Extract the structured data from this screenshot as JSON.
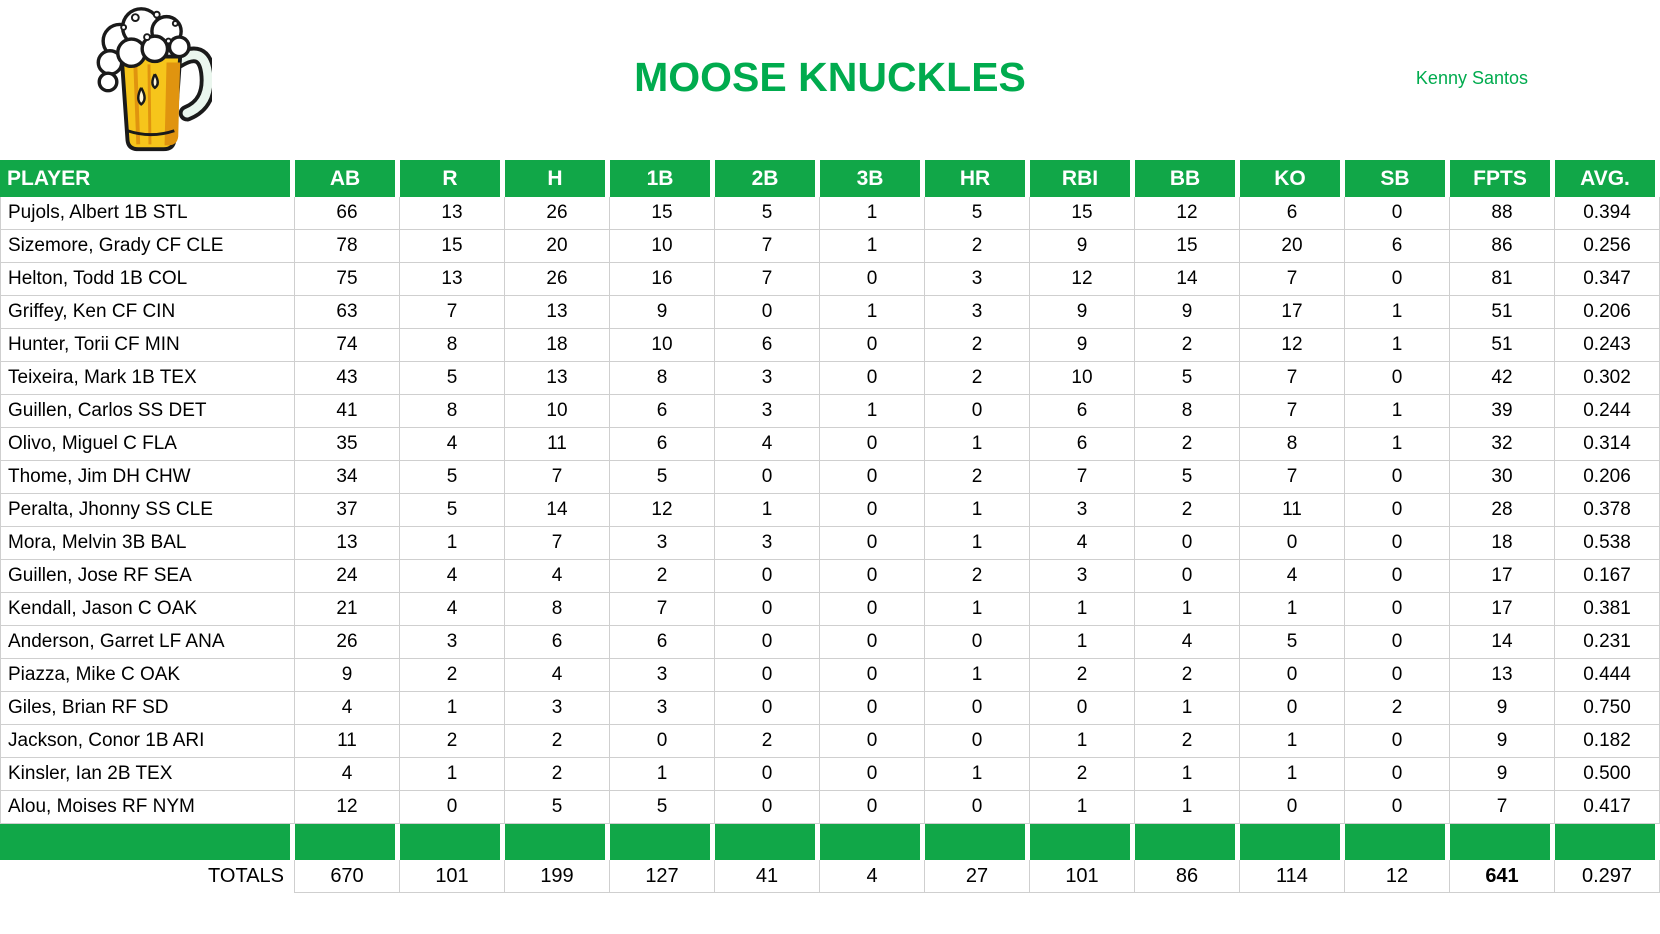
{
  "header": {
    "title": "MOOSE KNUCKLES",
    "owner": "Kenny Santos",
    "logo": "beer-mug"
  },
  "colors": {
    "green": "#11A748",
    "titlegreen": "#00AB4E",
    "grid": "#CFCFCF",
    "text": "#000000"
  },
  "table": {
    "columns": [
      "PLAYER",
      "AB",
      "R",
      "H",
      "1B",
      "2B",
      "3B",
      "HR",
      "RBI",
      "BB",
      "KO",
      "SB",
      "FPTS",
      "AVG."
    ],
    "rows": [
      {
        "player": "Pujols, Albert 1B STL",
        "stats": [
          66,
          13,
          26,
          15,
          5,
          1,
          5,
          15,
          12,
          6,
          0,
          88,
          "0.394"
        ]
      },
      {
        "player": "Sizemore, Grady CF CLE",
        "stats": [
          78,
          15,
          20,
          10,
          7,
          1,
          2,
          9,
          15,
          20,
          6,
          86,
          "0.256"
        ]
      },
      {
        "player": "Helton, Todd 1B COL",
        "stats": [
          75,
          13,
          26,
          16,
          7,
          0,
          3,
          12,
          14,
          7,
          0,
          81,
          "0.347"
        ]
      },
      {
        "player": "Griffey, Ken CF CIN",
        "stats": [
          63,
          7,
          13,
          9,
          0,
          1,
          3,
          9,
          9,
          17,
          1,
          51,
          "0.206"
        ]
      },
      {
        "player": "Hunter, Torii CF MIN",
        "stats": [
          74,
          8,
          18,
          10,
          6,
          0,
          2,
          9,
          2,
          12,
          1,
          51,
          "0.243"
        ]
      },
      {
        "player": "Teixeira, Mark 1B TEX",
        "stats": [
          43,
          5,
          13,
          8,
          3,
          0,
          2,
          10,
          5,
          7,
          0,
          42,
          "0.302"
        ]
      },
      {
        "player": "Guillen, Carlos SS DET",
        "stats": [
          41,
          8,
          10,
          6,
          3,
          1,
          0,
          6,
          8,
          7,
          1,
          39,
          "0.244"
        ]
      },
      {
        "player": "Olivo, Miguel C FLA",
        "stats": [
          35,
          4,
          11,
          6,
          4,
          0,
          1,
          6,
          2,
          8,
          1,
          32,
          "0.314"
        ]
      },
      {
        "player": "Thome, Jim DH CHW",
        "stats": [
          34,
          5,
          7,
          5,
          0,
          0,
          2,
          7,
          5,
          7,
          0,
          30,
          "0.206"
        ]
      },
      {
        "player": "Peralta, Jhonny SS CLE",
        "stats": [
          37,
          5,
          14,
          12,
          1,
          0,
          1,
          3,
          2,
          11,
          0,
          28,
          "0.378"
        ]
      },
      {
        "player": "Mora, Melvin 3B BAL",
        "stats": [
          13,
          1,
          7,
          3,
          3,
          0,
          1,
          4,
          0,
          0,
          0,
          18,
          "0.538"
        ]
      },
      {
        "player": "Guillen, Jose RF SEA",
        "stats": [
          24,
          4,
          4,
          2,
          0,
          0,
          2,
          3,
          0,
          4,
          0,
          17,
          "0.167"
        ]
      },
      {
        "player": "Kendall, Jason C OAK",
        "stats": [
          21,
          4,
          8,
          7,
          0,
          0,
          1,
          1,
          1,
          1,
          0,
          17,
          "0.381"
        ]
      },
      {
        "player": "Anderson, Garret LF ANA",
        "stats": [
          26,
          3,
          6,
          6,
          0,
          0,
          0,
          1,
          4,
          5,
          0,
          14,
          "0.231"
        ]
      },
      {
        "player": "Piazza, Mike C OAK",
        "stats": [
          9,
          2,
          4,
          3,
          0,
          0,
          1,
          2,
          2,
          0,
          0,
          13,
          "0.444"
        ]
      },
      {
        "player": "Giles, Brian RF SD",
        "stats": [
          4,
          1,
          3,
          3,
          0,
          0,
          0,
          0,
          1,
          0,
          2,
          9,
          "0.750"
        ]
      },
      {
        "player": "Jackson, Conor 1B ARI",
        "stats": [
          11,
          2,
          2,
          0,
          2,
          0,
          0,
          1,
          2,
          1,
          0,
          9,
          "0.182"
        ]
      },
      {
        "player": "Kinsler, Ian 2B TEX",
        "stats": [
          4,
          1,
          2,
          1,
          0,
          0,
          1,
          2,
          1,
          1,
          0,
          9,
          "0.500"
        ]
      },
      {
        "player": "Alou, Moises RF NYM",
        "stats": [
          12,
          0,
          5,
          5,
          0,
          0,
          0,
          1,
          1,
          0,
          0,
          7,
          "0.417"
        ]
      }
    ],
    "totals": {
      "label": "TOTALS",
      "stats": [
        670,
        101,
        199,
        127,
        41,
        4,
        27,
        101,
        86,
        114,
        12,
        641,
        "0.297"
      ],
      "emphasized_column": "FPTS"
    }
  }
}
